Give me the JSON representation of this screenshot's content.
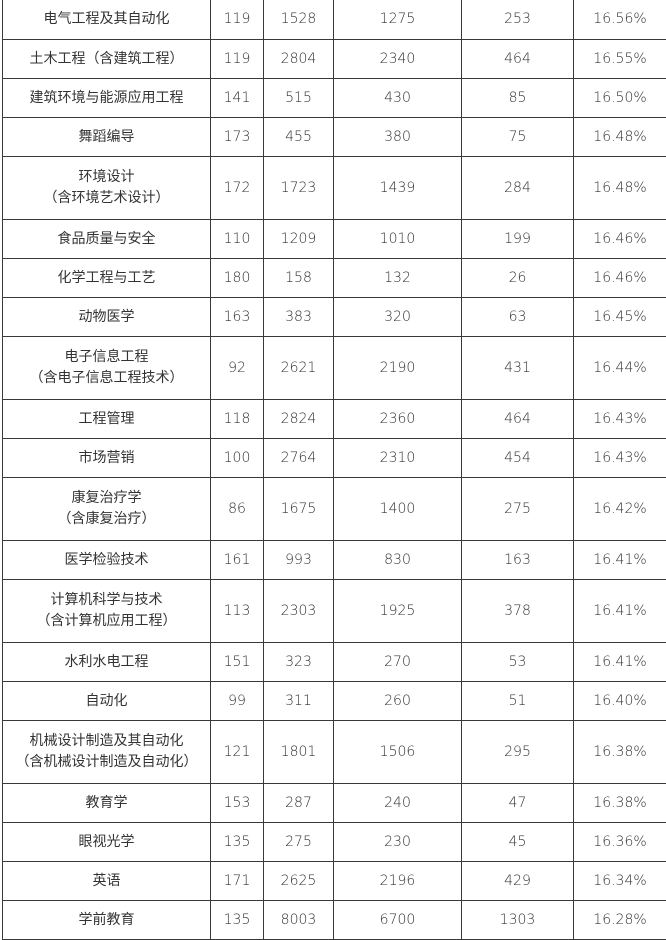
{
  "rows": [
    {
      "major": "电气工程及其自动化",
      "a": "119",
      "b": "1528",
      "c": "1275",
      "d": "253",
      "pct": "16.56%"
    },
    {
      "major": "土木工程（含建筑工程）",
      "a": "119",
      "b": "2804",
      "c": "2340",
      "d": "464",
      "pct": "16.55%"
    },
    {
      "major": "建筑环境与能源应用工程",
      "a": "141",
      "b": "515",
      "c": "430",
      "d": "85",
      "pct": "16.50%"
    },
    {
      "major": "舞蹈编导",
      "a": "173",
      "b": "455",
      "c": "380",
      "d": "75",
      "pct": "16.48%"
    },
    {
      "major": "环境设计\n（含环境艺术设计）",
      "a": "172",
      "b": "1723",
      "c": "1439",
      "d": "284",
      "pct": "16.48%"
    },
    {
      "major": "食品质量与安全",
      "a": "110",
      "b": "1209",
      "c": "1010",
      "d": "199",
      "pct": "16.46%"
    },
    {
      "major": "化学工程与工艺",
      "a": "180",
      "b": "158",
      "c": "132",
      "d": "26",
      "pct": "16.46%"
    },
    {
      "major": "动物医学",
      "a": "163",
      "b": "383",
      "c": "320",
      "d": "63",
      "pct": "16.45%"
    },
    {
      "major": "电子信息工程\n（含电子信息工程技术）",
      "a": "92",
      "b": "2621",
      "c": "2190",
      "d": "431",
      "pct": "16.44%"
    },
    {
      "major": "工程管理",
      "a": "118",
      "b": "2824",
      "c": "2360",
      "d": "464",
      "pct": "16.43%"
    },
    {
      "major": "市场营销",
      "a": "100",
      "b": "2764",
      "c": "2310",
      "d": "454",
      "pct": "16.43%"
    },
    {
      "major": "康复治疗学\n（含康复治疗）",
      "a": "86",
      "b": "1675",
      "c": "1400",
      "d": "275",
      "pct": "16.42%"
    },
    {
      "major": "医学检验技术",
      "a": "161",
      "b": "993",
      "c": "830",
      "d": "163",
      "pct": "16.41%"
    },
    {
      "major": "计算机科学与技术\n（含计算机应用工程）",
      "a": "113",
      "b": "2303",
      "c": "1925",
      "d": "378",
      "pct": "16.41%"
    },
    {
      "major": "水利水电工程",
      "a": "151",
      "b": "323",
      "c": "270",
      "d": "53",
      "pct": "16.41%"
    },
    {
      "major": "自动化",
      "a": "99",
      "b": "311",
      "c": "260",
      "d": "51",
      "pct": "16.40%"
    },
    {
      "major": "机械设计制造及其自动化\n（含机械设计制造及自动化）",
      "a": "121",
      "b": "1801",
      "c": "1506",
      "d": "295",
      "pct": "16.38%"
    },
    {
      "major": "教育学",
      "a": "153",
      "b": "287",
      "c": "240",
      "d": "47",
      "pct": "16.38%"
    },
    {
      "major": "眼视光学",
      "a": "135",
      "b": "275",
      "c": "230",
      "d": "45",
      "pct": "16.36%"
    },
    {
      "major": "英语",
      "a": "171",
      "b": "2625",
      "c": "2196",
      "d": "429",
      "pct": "16.34%"
    },
    {
      "major": "学前教育",
      "a": "135",
      "b": "8003",
      "c": "6700",
      "d": "1303",
      "pct": "16.28%"
    }
  ]
}
